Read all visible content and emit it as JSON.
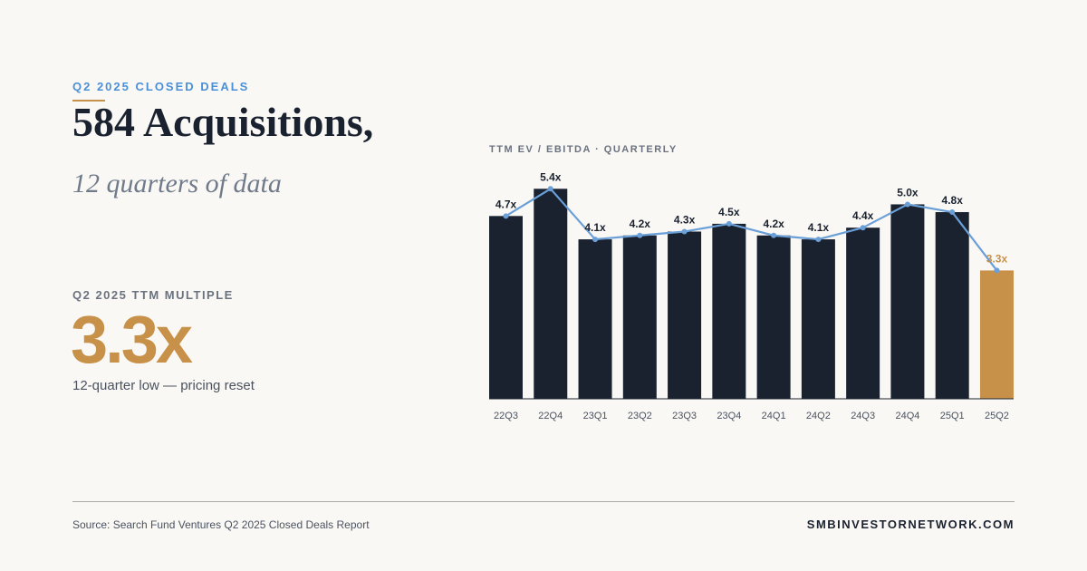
{
  "header": {
    "eyebrow": "Q2 2025 CLOSED DEALS",
    "headline": "584 Acquisitions,",
    "subhead": "12 quarters of data"
  },
  "metric": {
    "label": "Q2 2025 TTM MULTIPLE",
    "value": "3.3x",
    "caption": "12-quarter low — pricing reset"
  },
  "chart_label": "TTM EV / EBITDA · QUARTERLY",
  "chart_data": {
    "type": "bar",
    "title": "TTM EV / EBITDA · QUARTERLY",
    "categories": [
      "22Q3",
      "22Q4",
      "23Q1",
      "23Q2",
      "23Q3",
      "23Q4",
      "24Q1",
      "24Q2",
      "24Q3",
      "24Q4",
      "25Q1",
      "25Q2"
    ],
    "values": [
      4.7,
      5.4,
      4.1,
      4.2,
      4.3,
      4.5,
      4.2,
      4.1,
      4.4,
      5.0,
      4.8,
      3.3
    ],
    "data_labels": [
      "4.7x",
      "5.4x",
      "4.1x",
      "4.2x",
      "4.3x",
      "4.5x",
      "4.2x",
      "4.1x",
      "4.4x",
      "5.0x",
      "4.8x",
      "3.3x"
    ],
    "overlay_line": true,
    "highlight_index": 11,
    "grid": false,
    "ylim": [
      0,
      5.5
    ],
    "xlabel": "",
    "ylabel": "",
    "colors": {
      "bar": "#1a2230",
      "highlight": "#c8914a",
      "line": "#6a9fd8",
      "label": "#1a2230",
      "tick": "#4a5260"
    }
  },
  "footer": {
    "source": "Source: Search Fund Ventures Q2 2025 Closed Deals Report",
    "site": "SMBINVESTORNETWORK.COM"
  }
}
